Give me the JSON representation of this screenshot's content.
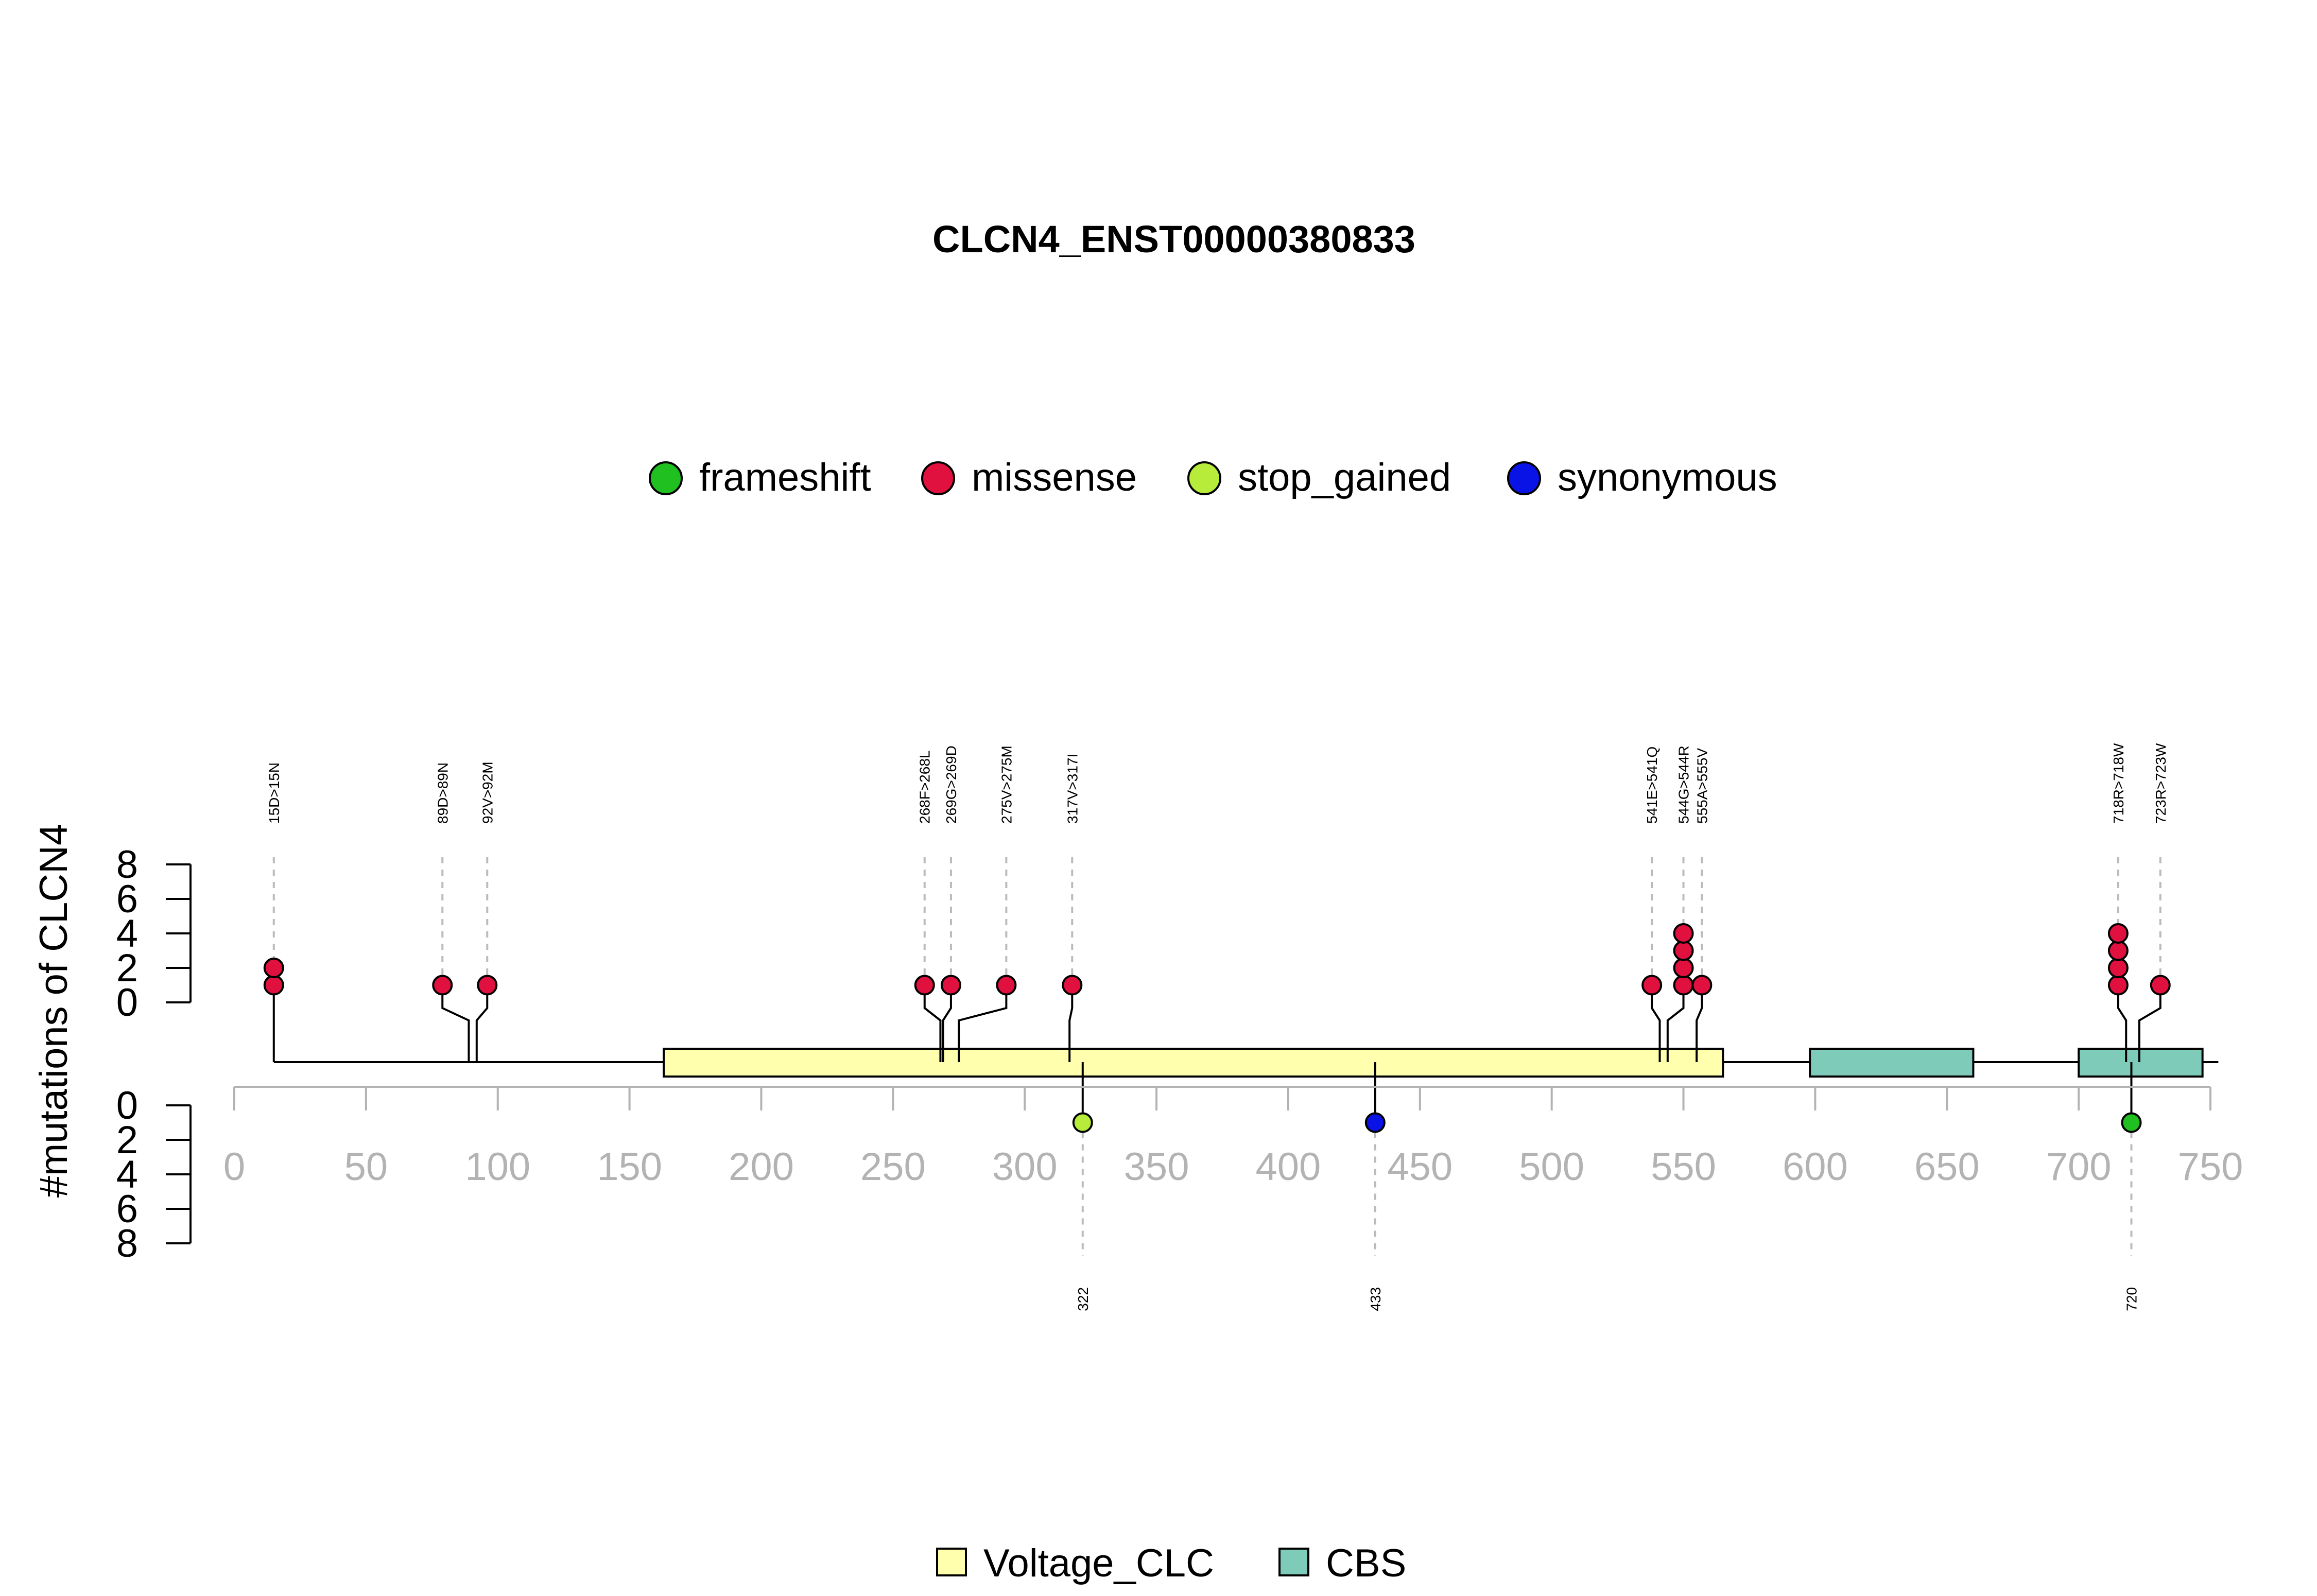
{
  "chart_data": {
    "type": "lollipop",
    "title": "CLCN4_ENST00000380833",
    "ylabel": "#mutations of CLCN4",
    "xlim": [
      0,
      750
    ],
    "x_ticks": [
      "0",
      "50",
      "100",
      "150",
      "200",
      "250",
      "300",
      "350",
      "400",
      "450",
      "500",
      "550",
      "600",
      "650",
      "700",
      "750"
    ],
    "y_ticks": [
      "0",
      "2",
      "4",
      "6",
      "8"
    ],
    "ylim": [
      0,
      8
    ],
    "legend_variants": [
      {
        "name": "frameshift",
        "color": "#1fc01f"
      },
      {
        "name": "missense",
        "color": "#e0103f"
      },
      {
        "name": "stop_gained",
        "color": "#b7ec3b"
      },
      {
        "name": "synonymous",
        "color": "#0a13e6"
      }
    ],
    "legend_domains": [
      {
        "name": "Voltage_CLC",
        "color": "#ffffae"
      },
      {
        "name": "CBS",
        "color": "#7fcbba"
      }
    ],
    "domains": [
      {
        "name": "Voltage_CLC",
        "start": 163,
        "end": 565
      },
      {
        "name": "CBS",
        "start": 598,
        "end": 660
      },
      {
        "name": "CBS",
        "start": 700,
        "end": 747
      }
    ],
    "upper_mutations": [
      {
        "pos": 15,
        "label": "15D>15N",
        "count": 2,
        "type": "missense"
      },
      {
        "pos": 89,
        "label": "89D>89N",
        "count": 1,
        "type": "missense"
      },
      {
        "pos": 92,
        "label": "92V>92M",
        "count": 1,
        "type": "missense"
      },
      {
        "pos": 268,
        "label": "268F>268L",
        "count": 1,
        "type": "missense"
      },
      {
        "pos": 269,
        "label": "269G>269D",
        "count": 1,
        "type": "missense"
      },
      {
        "pos": 275,
        "label": "275V>275M",
        "count": 1,
        "type": "missense"
      },
      {
        "pos": 317,
        "label": "317V>317I",
        "count": 1,
        "type": "missense"
      },
      {
        "pos": 541,
        "label": "541E>541Q",
        "count": 1,
        "type": "missense"
      },
      {
        "pos": 544,
        "label": "544G>544R",
        "count": 4,
        "type": "missense"
      },
      {
        "pos": 555,
        "label": "555A>555V",
        "count": 1,
        "type": "missense"
      },
      {
        "pos": 718,
        "label": "718R>718W",
        "count": 4,
        "type": "missense"
      },
      {
        "pos": 723,
        "label": "723R>723W",
        "count": 1,
        "type": "missense"
      }
    ],
    "lower_mutations": [
      {
        "pos": 322,
        "label": "322",
        "count": 1,
        "type": "stop_gained"
      },
      {
        "pos": 433,
        "label": "433",
        "count": 1,
        "type": "synonymous"
      },
      {
        "pos": 720,
        "label": "720",
        "count": 1,
        "type": "frameshift"
      }
    ]
  }
}
